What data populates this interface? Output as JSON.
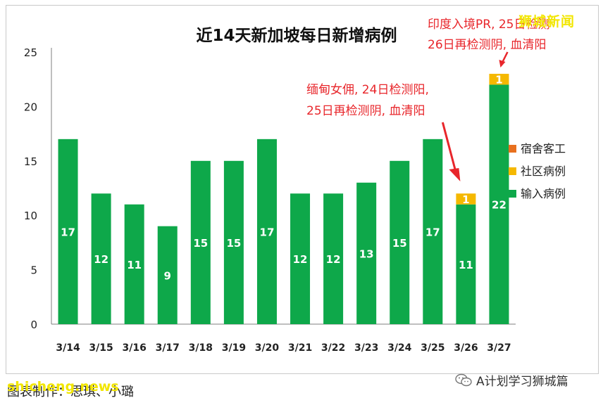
{
  "chart_data": {
    "type": "bar",
    "stacked": true,
    "title": "近14天新加坡每日新增病例",
    "categories": [
      "3/14",
      "3/15",
      "3/16",
      "3/17",
      "3/18",
      "3/19",
      "3/20",
      "3/21",
      "3/22",
      "3/23",
      "3/24",
      "3/25",
      "3/26",
      "3/27"
    ],
    "series": [
      {
        "name": "输入病例",
        "color": "#0ea84a",
        "values": [
          17,
          12,
          11,
          9,
          15,
          15,
          17,
          12,
          12,
          13,
          15,
          17,
          11,
          22
        ]
      },
      {
        "name": "社区病例",
        "color": "#f5b800",
        "values": [
          0,
          0,
          0,
          0,
          0,
          0,
          0,
          0,
          0,
          0,
          0,
          0,
          1,
          1
        ]
      },
      {
        "name": "宿舍客工",
        "color": "#e8701e",
        "values": [
          0,
          0,
          0,
          0,
          0,
          0,
          0,
          0,
          0,
          0,
          0,
          0,
          0,
          0
        ]
      }
    ],
    "legend_order": [
      "宿舍客工",
      "社区病例",
      "输入病例"
    ],
    "legend_position": "right",
    "ylim": [
      0,
      25
    ],
    "yticks": [
      0,
      5,
      10,
      15,
      20,
      25
    ],
    "grid": false,
    "annotations": [
      {
        "category": "3/26",
        "lines": [
          "缅甸女佣, 24日检测阳,",
          "25日再检测阴, 血清阳"
        ]
      },
      {
        "category": "3/27",
        "lines": [
          "印度入境PR, 25日检测",
          "26日再检测阴, 血清阳"
        ]
      }
    ]
  },
  "watermark": "狮城新闻",
  "credit": "图表制作：思琪、小璐",
  "credit_watermark": "shicheng.news",
  "account": "A计划学习狮城篇"
}
